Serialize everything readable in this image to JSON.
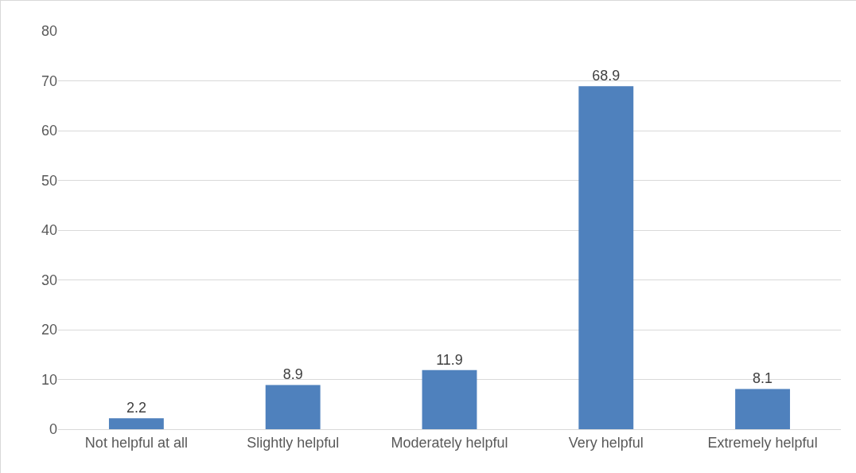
{
  "chart_data": {
    "type": "bar",
    "categories": [
      "Not helpful at all",
      "Slightly helpful",
      "Moderately helpful",
      "Very helpful",
      "Extremely helpful"
    ],
    "values": [
      2.2,
      8.9,
      11.9,
      68.9,
      8.1
    ],
    "color": "#4f81bd",
    "ylim": [
      0,
      80
    ],
    "yticks": [
      0,
      10,
      20,
      30,
      40,
      50,
      60,
      70,
      80
    ],
    "grid": "y",
    "data_labels": true
  }
}
